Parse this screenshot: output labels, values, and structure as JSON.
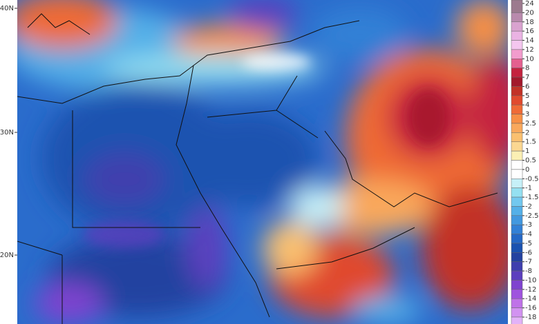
{
  "map": {
    "latitude_labels": [
      "40N",
      "30N",
      "20N"
    ],
    "colorbar": {
      "labels": [
        "24",
        "20",
        "18",
        "16",
        "14",
        "12",
        "10",
        "8",
        "7",
        "6",
        "5",
        "4",
        "3",
        "2.5",
        "2",
        "1.5",
        "1",
        "0.5",
        "0",
        "-0.5",
        "-1",
        "-1.5",
        "-2",
        "-2.5",
        "-3",
        "-4",
        "-5",
        "-6",
        "-7",
        "-8",
        "-10",
        "-12",
        "-14",
        "-16",
        "-18"
      ],
      "colors": [
        "#9c7a8e",
        "#b98aad",
        "#d9a2cf",
        "#eab3e3",
        "#f4c6ef",
        "#f29ccd",
        "#e4608f",
        "#c4233f",
        "#a3192c",
        "#c23227",
        "#e04a2e",
        "#ef6a36",
        "#f78f45",
        "#f9a85c",
        "#fac070",
        "#fbd791",
        "#fbefb4",
        "#ffffff",
        "#ffffff",
        "#c6f0f8",
        "#94e0f1",
        "#72c8ef",
        "#54b0e8",
        "#4298df",
        "#3280d6",
        "#2468c6",
        "#1a52b0",
        "#2342a0",
        "#3f3fae",
        "#5c3fbe",
        "#7f43cf",
        "#9f53de",
        "#bf72e8",
        "#d292f1",
        "#e2b2f8"
      ]
    }
  }
}
